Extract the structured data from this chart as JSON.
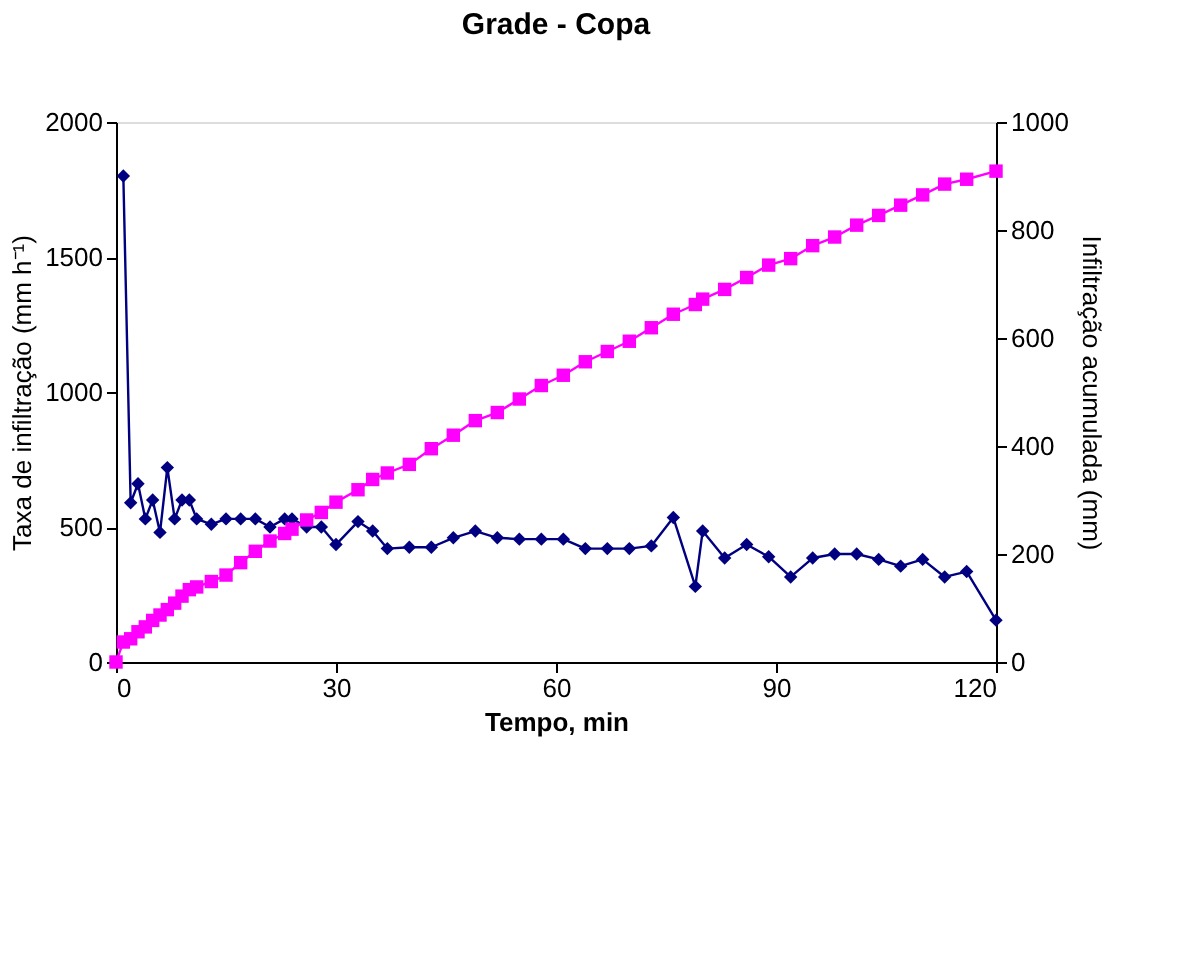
{
  "chart_data": {
    "type": "line",
    "title": "Grade - Copa",
    "xlabel": "Tempo, min",
    "ylabel": "Taxa de infiltração (mm h⁻¹)",
    "y2label": "Infiltração acumulada (mm)",
    "xlim": [
      0,
      120
    ],
    "xticks": [
      0,
      30,
      60,
      90,
      120
    ],
    "ylim": [
      0,
      2000
    ],
    "yticks": [
      0,
      500,
      1000,
      1500,
      2000
    ],
    "y2lim": [
      0,
      1000
    ],
    "y2ticks": [
      0,
      200,
      400,
      600,
      800,
      1000
    ],
    "grid": false,
    "line_style": "solid",
    "series": [
      {
        "color": "#000080",
        "marker": "diamond",
        "x": [
          1,
          2,
          3,
          4,
          5,
          6,
          7,
          8,
          9,
          10,
          11,
          13,
          15,
          17,
          19,
          21,
          23,
          24,
          26,
          28,
          30,
          33,
          35,
          37,
          40,
          43,
          46,
          49,
          52,
          55,
          58,
          61,
          64,
          67,
          70,
          73,
          76,
          79,
          80,
          83,
          86,
          89,
          92,
          95,
          98,
          101,
          104,
          107,
          110,
          113,
          116,
          120
        ],
        "values": [
          1800,
          590,
          660,
          530,
          600,
          480,
          720,
          530,
          600,
          600,
          530,
          510,
          530,
          530,
          530,
          500,
          530,
          530,
          500,
          500,
          435,
          520,
          485,
          420,
          425,
          425,
          460,
          485,
          460,
          455,
          455,
          455,
          420,
          420,
          420,
          430,
          535,
          280,
          485,
          385,
          435,
          390,
          315,
          385,
          400,
          400,
          380,
          355,
          380,
          315,
          335,
          155
        ]
      },
      {
        "color": "#ff00ff",
        "marker": "square",
        "axis": "y2",
        "x": [
          0,
          1,
          2,
          3,
          4,
          5,
          6,
          7,
          8,
          9,
          10,
          11,
          13,
          15,
          17,
          19,
          21,
          23,
          24,
          26,
          28,
          30,
          33,
          35,
          37,
          40,
          43,
          46,
          49,
          52,
          55,
          58,
          61,
          64,
          67,
          70,
          73,
          76,
          79,
          80,
          83,
          86,
          89,
          92,
          95,
          98,
          101,
          104,
          107,
          110,
          113,
          116,
          120
        ],
        "values": [
          0,
          37,
          43,
          56,
          65,
          77,
          87,
          97,
          109,
          122,
          134,
          139,
          149,
          161,
          184,
          205,
          224,
          238,
          246,
          263,
          277,
          296,
          319,
          338,
          350,
          366,
          395,
          420,
          447,
          462,
          487,
          512,
          531,
          556,
          575,
          594,
          619,
          644,
          662,
          672,
          690,
          712,
          735,
          747,
          771,
          787,
          809,
          827,
          846,
          865,
          885,
          894,
          909
        ]
      }
    ]
  }
}
